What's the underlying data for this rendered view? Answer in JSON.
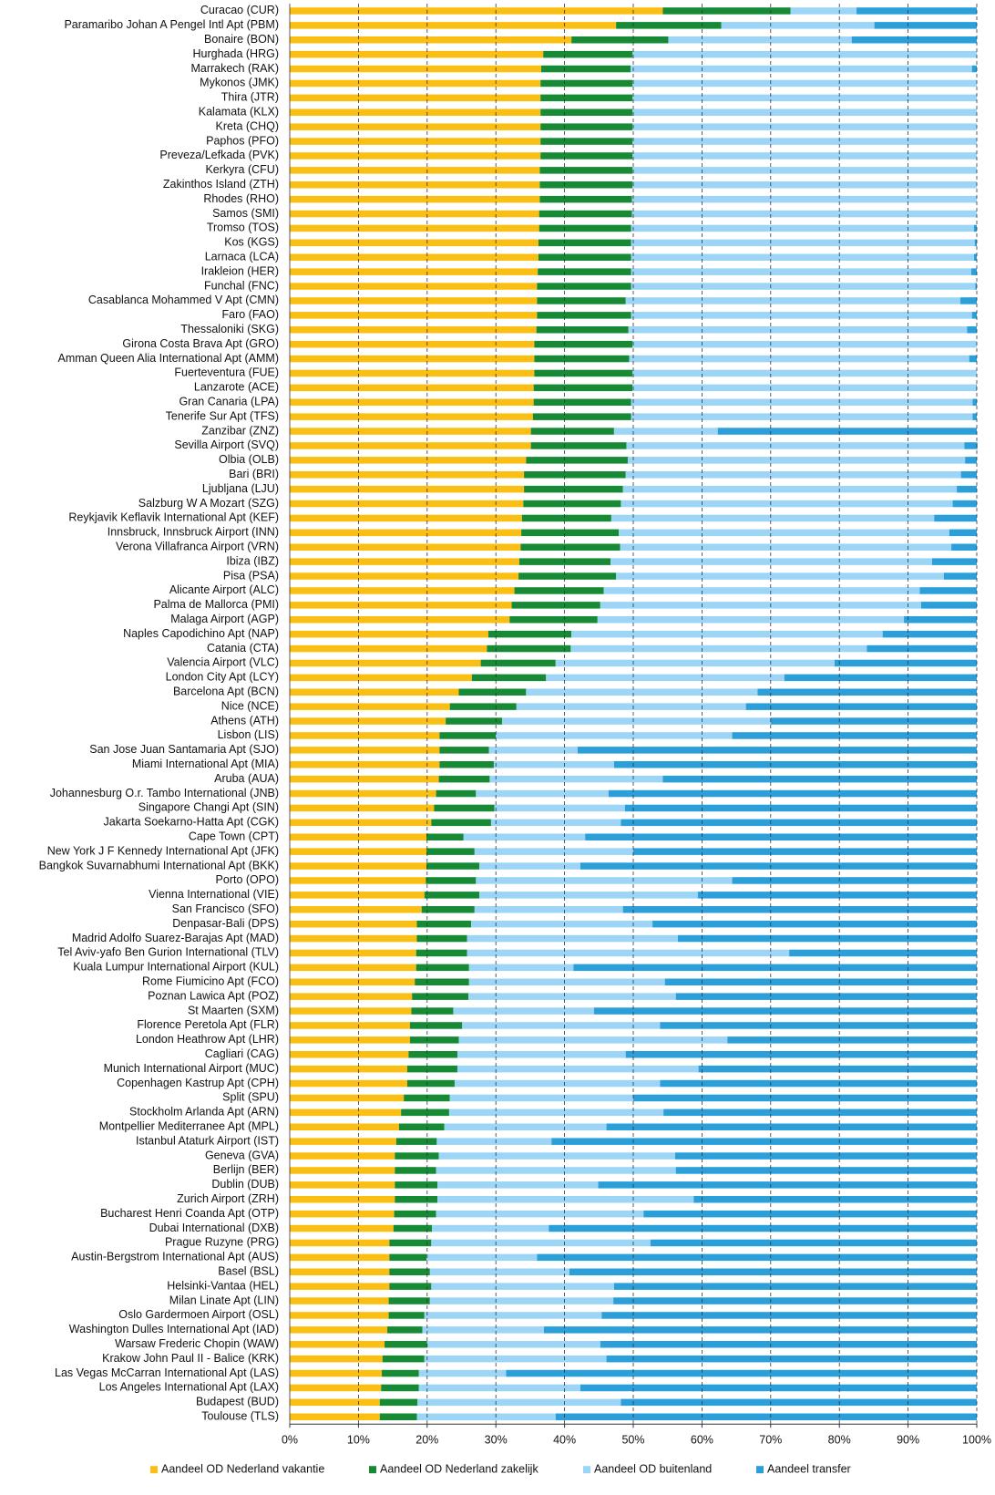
{
  "chart_data": {
    "type": "stacked-bar-horizontal",
    "categories": [
      "Curacao (CUR)",
      "Paramaribo Johan A Pengel Intl Apt (PBM)",
      "Bonaire (BON)",
      "Hurghada (HRG)",
      "Marrakech (RAK)",
      "Mykonos (JMK)",
      "Thira (JTR)",
      "Kalamata (KLX)",
      "Kreta (CHQ)",
      "Paphos (PFO)",
      "Preveza/Lefkada (PVK)",
      "Kerkyra (CFU)",
      "Zakinthos Island (ZTH)",
      "Rhodes (RHO)",
      "Samos (SMI)",
      "Tromso (TOS)",
      "Kos (KGS)",
      "Larnaca (LCA)",
      "Irakleion (HER)",
      "Funchal (FNC)",
      "Casablanca Mohammed V Apt (CMN)",
      "Faro (FAO)",
      "Thessaloniki (SKG)",
      "Girona Costa Brava Apt (GRO)",
      "Amman Queen Alia International Apt (AMM)",
      "Fuerteventura (FUE)",
      "Lanzarote (ACE)",
      "Gran Canaria (LPA)",
      "Tenerife Sur Apt (TFS)",
      "Zanzibar (ZNZ)",
      "Sevilla Airport (SVQ)",
      "Olbia (OLB)",
      "Bari (BRI)",
      "Ljubljana (LJU)",
      "Salzburg W A Mozart (SZG)",
      "Reykjavik Keflavik International Apt (KEF)",
      "Innsbruck, Innsbruck Airport (INN)",
      "Verona Villafranca Airport (VRN)",
      "Ibiza (IBZ)",
      "Pisa (PSA)",
      "Alicante Airport (ALC)",
      "Palma de Mallorca (PMI)",
      "Malaga Airport (AGP)",
      "Naples Capodichino Apt (NAP)",
      "Catania (CTA)",
      "Valencia Airport (VLC)",
      "London City Apt (LCY)",
      "Barcelona Apt (BCN)",
      "Nice (NCE)",
      "Athens (ATH)",
      "Lisbon (LIS)",
      "San Jose Juan Santamaria Apt (SJO)",
      "Miami International Apt (MIA)",
      "Aruba (AUA)",
      "Johannesburg O.r. Tambo International (JNB)",
      "Singapore Changi Apt (SIN)",
      "Jakarta Soekarno-Hatta Apt (CGK)",
      "Cape Town (CPT)",
      "New York J F Kennedy International Apt (JFK)",
      "Bangkok Suvarnabhumi International Apt (BKK)",
      "Porto (OPO)",
      "Vienna International (VIE)",
      "San Francisco (SFO)",
      "Denpasar-Bali (DPS)",
      "Madrid Adolfo Suarez-Barajas Apt (MAD)",
      "Tel Aviv-yafo Ben Gurion International (TLV)",
      "Kuala Lumpur International Airport (KUL)",
      "Rome Fiumicino Apt (FCO)",
      "Poznan Lawica Apt (POZ)",
      "St Maarten (SXM)",
      "Florence Peretola Apt (FLR)",
      "London Heathrow Apt (LHR)",
      "Cagliari (CAG)",
      "Munich International Airport (MUC)",
      "Copenhagen Kastrup Apt (CPH)",
      "Split (SPU)",
      "Stockholm Arlanda Apt (ARN)",
      "Montpellier Mediterranee Apt (MPL)",
      "Istanbul Ataturk Airport (IST)",
      "Geneva (GVA)",
      "Berlijn (BER)",
      "Dublin (DUB)",
      "Zurich Airport (ZRH)",
      "Bucharest Henri Coanda Apt (OTP)",
      "Dubai International (DXB)",
      "Prague Ruzyne (PRG)",
      "Austin-Bergstrom International Apt (AUS)",
      "Basel (BSL)",
      "Helsinki-Vantaa (HEL)",
      "Milan Linate Apt (LIN)",
      "Oslo Gardermoen Airport (OSL)",
      "Washington Dulles International Apt (IAD)",
      "Warsaw Frederic Chopin (WAW)",
      "Krakow John Paul II - Balice (KRK)",
      "Las Vegas McCarran International Apt (LAS)",
      "Los Angeles International Apt (LAX)",
      "Budapest (BUD)",
      "Toulouse (TLS)"
    ],
    "series": [
      {
        "name": "Aandeel OD Nederland vakantie",
        "color": "#fbbf14",
        "values": [
          54.3,
          47.5,
          41.0,
          36.9,
          36.6,
          36.5,
          36.5,
          36.5,
          36.5,
          36.5,
          36.5,
          36.4,
          36.4,
          36.4,
          36.3,
          36.3,
          36.2,
          36.2,
          36.1,
          36.0,
          36.0,
          36.0,
          35.9,
          35.6,
          35.6,
          35.6,
          35.5,
          35.5,
          35.4,
          35.1,
          35.1,
          34.4,
          34.1,
          34.1,
          34.0,
          33.8,
          33.7,
          33.6,
          33.4,
          33.3,
          32.7,
          32.3,
          32.0,
          28.9,
          28.7,
          27.8,
          26.5,
          24.6,
          23.3,
          22.7,
          21.8,
          21.8,
          21.8,
          21.7,
          21.3,
          21.0,
          20.6,
          19.9,
          19.9,
          19.9,
          19.8,
          19.6,
          19.2,
          18.5,
          18.5,
          18.4,
          18.4,
          18.2,
          17.8,
          17.7,
          17.5,
          17.5,
          17.3,
          17.1,
          17.1,
          16.6,
          16.2,
          15.9,
          15.5,
          15.3,
          15.3,
          15.3,
          15.3,
          15.2,
          15.1,
          14.5,
          14.5,
          14.5,
          14.5,
          14.4,
          14.4,
          14.2,
          13.8,
          13.5,
          13.4,
          13.3,
          13.1,
          13.1
        ]
      },
      {
        "name": "Aandeel OD Nederland zakelijk",
        "color": "#178a36",
        "values": [
          18.6,
          15.3,
          14.1,
          13.0,
          13.0,
          13.4,
          13.4,
          13.4,
          13.4,
          13.4,
          13.4,
          13.5,
          13.5,
          13.4,
          13.5,
          13.4,
          13.5,
          13.5,
          13.6,
          13.7,
          12.9,
          13.7,
          13.4,
          14.3,
          13.8,
          14.3,
          14.4,
          14.2,
          14.3,
          12.1,
          13.9,
          14.8,
          14.8,
          14.4,
          14.2,
          13.0,
          14.2,
          14.5,
          13.3,
          14.2,
          13.0,
          12.9,
          12.8,
          12.1,
          12.2,
          10.9,
          10.8,
          9.8,
          9.7,
          8.2,
          8.2,
          7.2,
          7.9,
          7.4,
          5.8,
          8.8,
          8.7,
          5.4,
          7.0,
          7.7,
          7.3,
          8.0,
          7.7,
          7.9,
          7.3,
          7.4,
          7.7,
          7.9,
          8.2,
          6.1,
          7.6,
          7.1,
          7.1,
          7.3,
          6.9,
          6.7,
          7.0,
          6.6,
          5.9,
          6.4,
          6.0,
          6.2,
          6.2,
          6.1,
          5.6,
          6.1,
          5.4,
          5.9,
          6.1,
          6.0,
          5.2,
          5.1,
          6.2,
          6.1,
          5.4,
          5.5,
          5.5,
          5.4
        ]
      },
      {
        "name": "Aandeel OD buitenland",
        "color": "#9dd5f6",
        "values": [
          9.6,
          22.3,
          26.7,
          50.1,
          49.7,
          50.1,
          50.1,
          50.1,
          50.1,
          50.1,
          50.1,
          50.1,
          50.1,
          50.2,
          50.2,
          49.9,
          50.0,
          49.9,
          49.5,
          50.1,
          48.7,
          49.6,
          49.3,
          50.1,
          49.5,
          50.1,
          50.0,
          49.7,
          49.7,
          15.1,
          49.2,
          49.1,
          48.8,
          48.6,
          48.3,
          47.0,
          48.1,
          48.2,
          46.8,
          47.7,
          46.0,
          46.7,
          44.6,
          45.3,
          43.1,
          40.6,
          34.7,
          33.7,
          33.4,
          39.1,
          34.4,
          12.9,
          17.5,
          25.2,
          19.3,
          19.0,
          18.9,
          17.7,
          23.1,
          14.7,
          37.3,
          31.8,
          21.6,
          26.4,
          30.7,
          46.9,
          15.2,
          28.5,
          30.2,
          20.5,
          28.8,
          39.1,
          24.5,
          35.1,
          29.9,
          26.7,
          31.2,
          23.6,
          16.7,
          34.4,
          34.9,
          23.4,
          37.3,
          30.2,
          17.0,
          31.9,
          16.1,
          20.3,
          26.6,
          26.7,
          25.8,
          17.7,
          25.2,
          26.5,
          12.7,
          23.5,
          29.6,
          20.2
        ]
      },
      {
        "name": "Aandeel transfer",
        "color": "#2b9fd9",
        "values": [
          17.5,
          14.9,
          18.2,
          0,
          0.7,
          0,
          0,
          0,
          0,
          0,
          0,
          0,
          0,
          0,
          0,
          0.4,
          0.3,
          0.4,
          0.8,
          0.2,
          2.4,
          0.7,
          1.4,
          0,
          1.1,
          0,
          0.1,
          0.6,
          0.6,
          37.7,
          1.9,
          1.7,
          2.3,
          2.9,
          3.5,
          6.2,
          4.0,
          3.7,
          6.5,
          4.8,
          8.3,
          8.1,
          10.6,
          13.7,
          16.0,
          20.7,
          28.0,
          31.9,
          33.6,
          30.0,
          35.6,
          58.1,
          52.8,
          45.7,
          53.6,
          51.2,
          51.8,
          57.0,
          50.0,
          57.7,
          35.6,
          40.6,
          51.5,
          47.2,
          43.5,
          27.3,
          58.7,
          45.4,
          43.8,
          55.7,
          46.1,
          36.3,
          51.1,
          40.5,
          46.1,
          50.0,
          45.6,
          53.9,
          61.9,
          43.9,
          43.8,
          55.1,
          41.2,
          48.5,
          62.3,
          47.5,
          64.0,
          59.3,
          52.8,
          52.9,
          54.6,
          63.0,
          54.8,
          53.9,
          68.5,
          57.7,
          51.8,
          61.3
        ]
      }
    ],
    "xlim": [
      0,
      100
    ],
    "xticks": [
      {
        "value": 0,
        "label": "0%"
      },
      {
        "value": 10,
        "label": "10%"
      },
      {
        "value": 20,
        "label": "20%"
      },
      {
        "value": 30,
        "label": "30%"
      },
      {
        "value": 40,
        "label": "40%"
      },
      {
        "value": 50,
        "label": "50%"
      },
      {
        "value": 60,
        "label": "60%"
      },
      {
        "value": 70,
        "label": "70%"
      },
      {
        "value": 80,
        "label": "80%"
      },
      {
        "value": 90,
        "label": "90%"
      },
      {
        "value": 100,
        "label": "100%"
      }
    ],
    "grid": true,
    "legend": "bottom"
  }
}
